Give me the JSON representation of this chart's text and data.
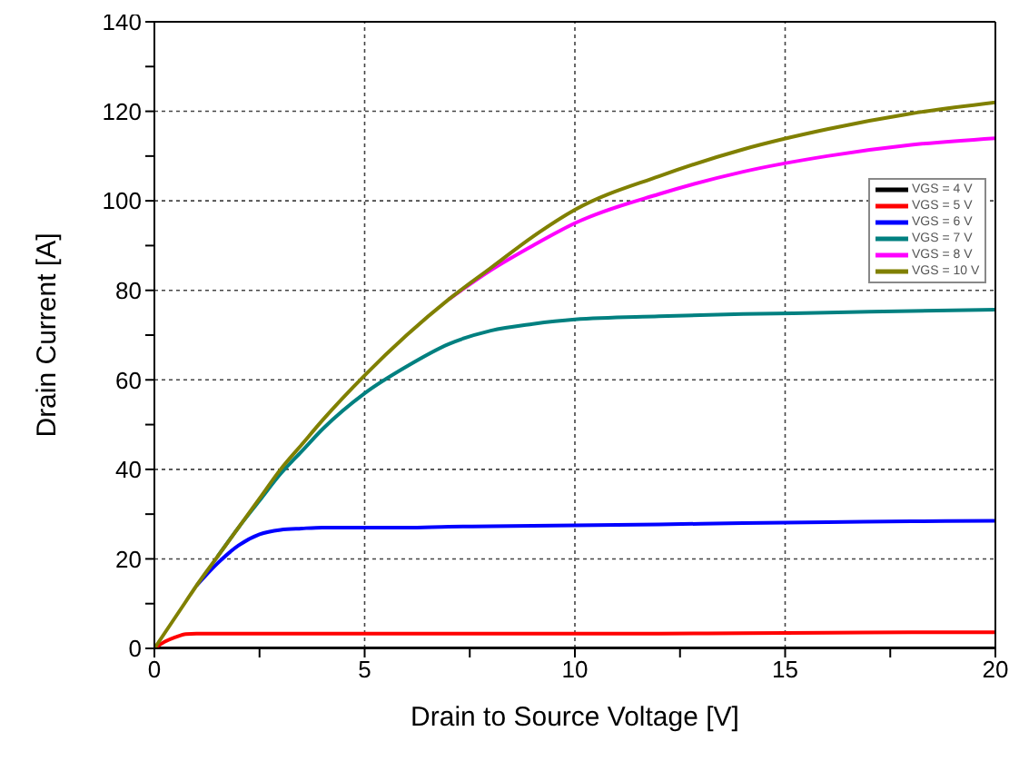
{
  "chart_data": {
    "type": "line",
    "xlabel": "Drain to Source Voltage [V]",
    "ylabel": "Drain Current [A]",
    "x": [
      0,
      0.25,
      0.5,
      0.75,
      1,
      1.5,
      2,
      2.5,
      3,
      3.5,
      4,
      5,
      6,
      7,
      8,
      9,
      10,
      12,
      14,
      16,
      18,
      20
    ],
    "series": [
      {
        "name": "VGS = 4 V",
        "color": "#000000",
        "values": [
          0,
          0,
          0,
          0,
          0,
          0,
          0,
          0,
          0,
          0,
          0,
          0,
          0,
          0,
          0,
          0,
          0,
          0,
          0,
          0,
          0,
          0
        ]
      },
      {
        "name": "VGS = 5 V",
        "color": "#ff0000",
        "values": [
          0,
          1.5,
          2.5,
          3.2,
          3.3,
          3.3,
          3.3,
          3.3,
          3.3,
          3.3,
          3.3,
          3.3,
          3.3,
          3.3,
          3.3,
          3.3,
          3.3,
          3.3,
          3.4,
          3.5,
          3.6,
          3.6
        ]
      },
      {
        "name": "VGS = 6 V",
        "color": "#0000ff",
        "values": [
          null,
          null,
          null,
          null,
          14,
          19,
          23,
          25.5,
          26.5,
          26.8,
          27,
          27,
          27,
          27.2,
          27.3,
          27.4,
          27.5,
          27.7,
          28,
          28.2,
          28.4,
          28.5
        ]
      },
      {
        "name": "VGS = 7 V",
        "color": "#008080",
        "values": [
          null,
          null,
          null,
          null,
          null,
          20.5,
          27,
          33,
          39,
          44,
          49,
          57,
          63,
          68,
          71,
          72.5,
          73.5,
          74.2,
          74.7,
          75,
          75.4,
          75.7
        ]
      },
      {
        "name": "VGS = 8 V",
        "color": "#ff00ff",
        "values": [
          null,
          null,
          null,
          null,
          null,
          null,
          null,
          null,
          null,
          null,
          null,
          null,
          null,
          78,
          84.5,
          90,
          95,
          101.5,
          106.5,
          110,
          112.5,
          114
        ]
      },
      {
        "name": "VGS = 10 V",
        "color": "#808000",
        "values": [
          0,
          3.5,
          7,
          10.5,
          14,
          20.5,
          27,
          33.5,
          40,
          45.5,
          51,
          61,
          70,
          78,
          85,
          92,
          98,
          105.5,
          111.5,
          116,
          119.5,
          122
        ]
      }
    ],
    "xlim": [
      0,
      20
    ],
    "xticks": [
      0,
      {
        "value": 2.5,
        "label": null
      },
      5,
      {
        "value": 7.5,
        "label": null
      },
      10,
      {
        "value": 12.5,
        "label": null
      },
      15,
      {
        "value": 17.5,
        "label": null
      },
      20
    ],
    "ylim": [
      0,
      140
    ],
    "yticks": [
      0,
      {
        "value": 10,
        "label": null
      },
      20,
      {
        "value": 30,
        "label": null
      },
      40,
      {
        "value": 50,
        "label": null
      },
      60,
      {
        "value": 70,
        "label": null
      },
      80,
      {
        "value": 90,
        "label": null
      },
      100,
      {
        "value": 110,
        "label": null
      },
      120,
      {
        "value": 130,
        "label": null
      },
      140
    ],
    "grid": true,
    "legend": "top right",
    "marker": "none",
    "line_style": "solid"
  }
}
